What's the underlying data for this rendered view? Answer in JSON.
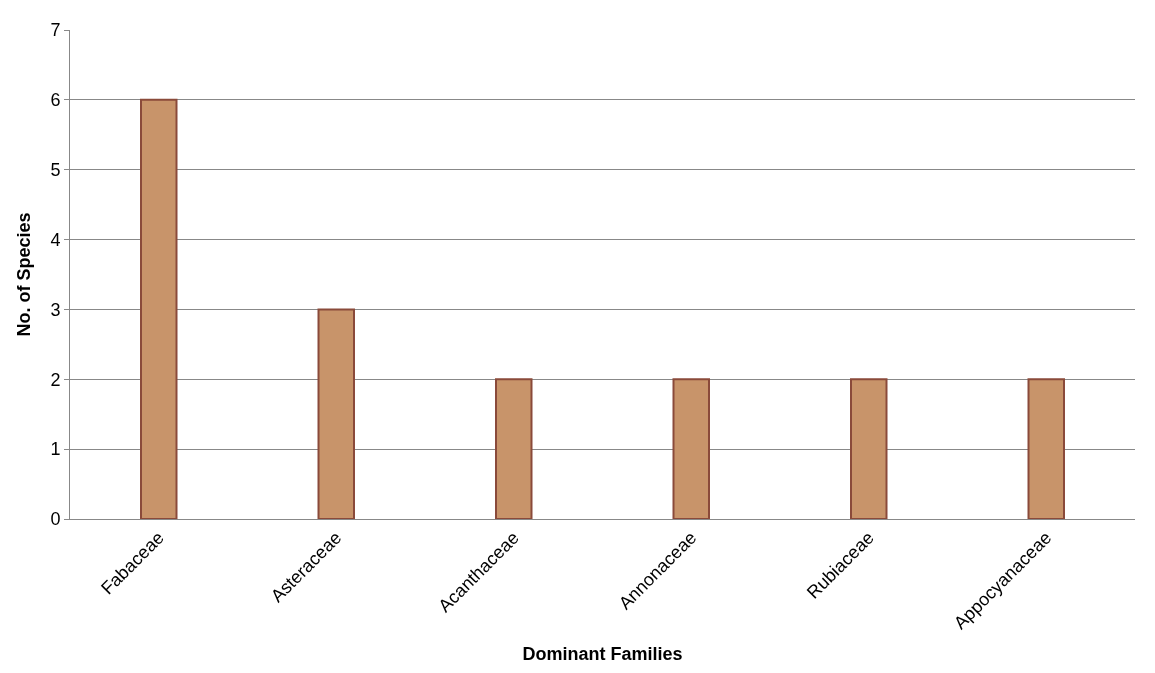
{
  "chart_data": {
    "type": "bar",
    "xlabel": "Dominant Families",
    "ylabel": "No. of Species",
    "categories": [
      "Fabaceae",
      "Asteraceae",
      "Acanthaceae",
      "Annonaceae",
      "Rubiaceae",
      "Appocyanaceae"
    ],
    "values": [
      6,
      3,
      2,
      2,
      2,
      2
    ],
    "color": "#c8946a",
    "ylim": [
      0,
      7
    ],
    "yticks": [
      0,
      1,
      2,
      3,
      4,
      5,
      6,
      7
    ],
    "grid": "y",
    "legend": false
  }
}
